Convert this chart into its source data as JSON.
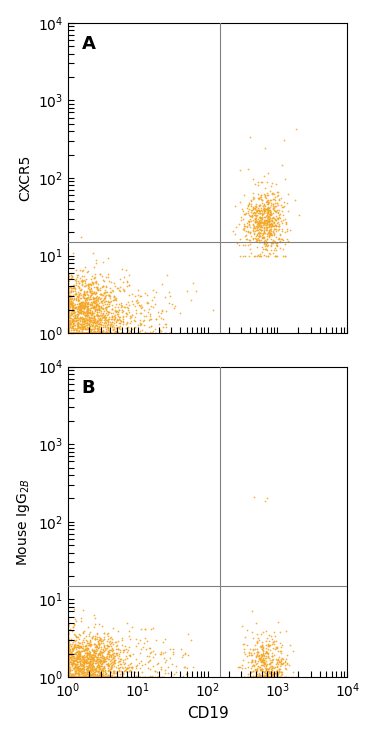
{
  "panel_A_label": "A",
  "panel_B_label": "B",
  "ylabel_A": "CXCR5",
  "ylabel_B": "Mouse IgG$_{2B}$",
  "xlabel": "CD19",
  "dot_color": "#F5A623",
  "dot_size": 1.5,
  "xlim": [
    1,
    10000
  ],
  "ylim": [
    1,
    10000
  ],
  "gate_x": 150,
  "gate_y_A": 15,
  "gate_y_B": 15,
  "bg_color": "#ffffff",
  "seed_A": 42,
  "seed_B": 99
}
